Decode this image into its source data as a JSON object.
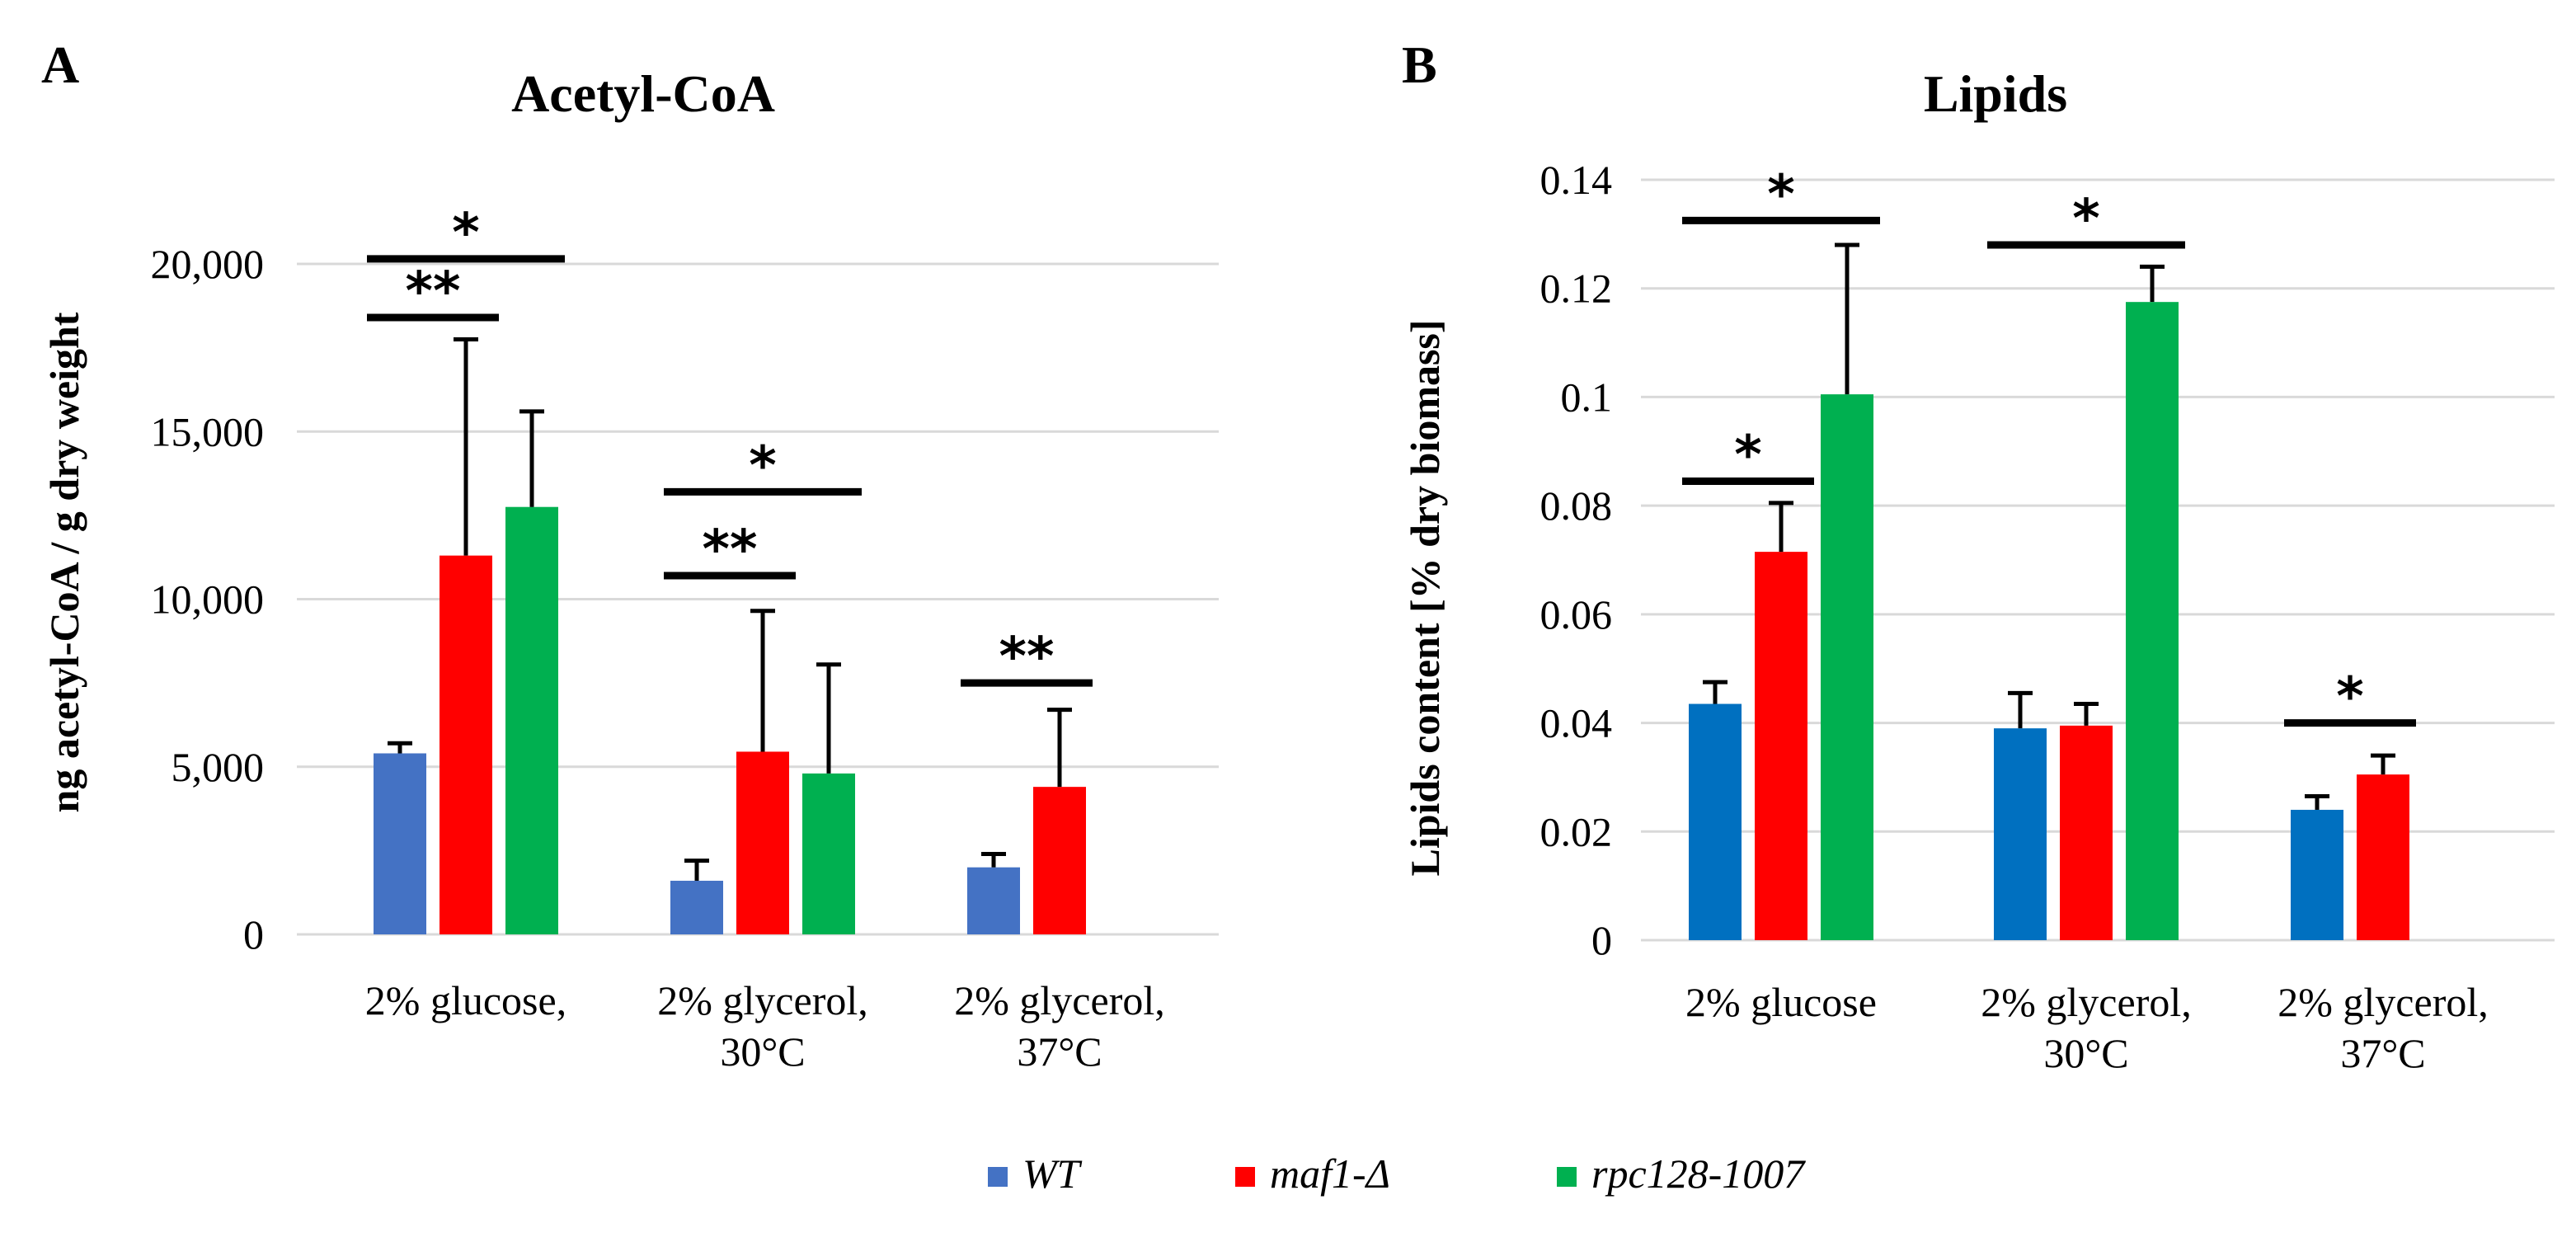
{
  "legend": [
    {
      "label": "WT",
      "color": "#4472C4"
    },
    {
      "label": "maf1-Δ",
      "color": "#FF0000"
    },
    {
      "label": "rpc128-1007",
      "color": "#00B050"
    }
  ],
  "chart_data": [
    {
      "type": "bar",
      "panel": "A",
      "title": "Acetyl-CoA",
      "ylabel": "ng acetyl-CoA / g dry weight",
      "ylim": [
        0,
        22500
      ],
      "yticks": [
        0,
        5000,
        10000,
        15000,
        20000
      ],
      "ytick_labels": [
        "0",
        "5,000",
        "10,000",
        "15,000",
        "20,000"
      ],
      "categories": [
        [
          "2% glucose,"
        ],
        [
          "2% glycerol,",
          "30°C"
        ],
        [
          "2% glycerol,",
          "37°C"
        ]
      ],
      "series": [
        {
          "name": "WT",
          "color": "#4472C4",
          "values": [
            5400,
            1600,
            2000
          ],
          "errors": [
            300,
            600,
            400
          ]
        },
        {
          "name": "maf1-Δ",
          "color": "#FF0000",
          "values": [
            11300,
            5450,
            4400
          ],
          "errors": [
            6450,
            4200,
            2300
          ]
        },
        {
          "name": "rpc128-1007",
          "color": "#00B050",
          "values": [
            12750,
            4800,
            null
          ],
          "errors": [
            2850,
            3250,
            null
          ]
        }
      ],
      "significance": [
        {
          "cat": 0,
          "from": 0,
          "to": 1,
          "y": 18400,
          "label": "**"
        },
        {
          "cat": 0,
          "from": 0,
          "to": 2,
          "y": 20150,
          "label": "*"
        },
        {
          "cat": 1,
          "from": 0,
          "to": 1,
          "y": 10700,
          "label": "**"
        },
        {
          "cat": 1,
          "from": 0,
          "to": 2,
          "y": 13200,
          "label": "*"
        },
        {
          "cat": 2,
          "from": 0,
          "to": 1,
          "y": 7500,
          "label": "**"
        }
      ]
    },
    {
      "type": "bar",
      "panel": "B",
      "title": "Lipids",
      "ylabel": "Lipids content  [% dry biomass]",
      "ylim": [
        0,
        0.14
      ],
      "yticks": [
        0,
        0.02,
        0.04,
        0.06,
        0.08,
        0.1,
        0.12,
        0.14
      ],
      "ytick_labels": [
        "0",
        "0.02",
        "0.04",
        "0.06",
        "0.08",
        "0.1",
        "0.12",
        "0.14"
      ],
      "categories": [
        [
          "2% glucose"
        ],
        [
          "2% glycerol,",
          "30°C"
        ],
        [
          "2% glycerol,",
          "37°C"
        ]
      ],
      "series": [
        {
          "name": "WT",
          "color": "#0070C0",
          "values": [
            0.0435,
            0.039,
            0.024
          ],
          "errors": [
            0.004,
            0.0065,
            0.0025
          ]
        },
        {
          "name": "maf1-Δ",
          "color": "#FF0000",
          "values": [
            0.0715,
            0.0395,
            0.0305
          ],
          "errors": [
            0.009,
            0.004,
            0.0035
          ]
        },
        {
          "name": "rpc128-1007",
          "color": "#00B050",
          "values": [
            0.1005,
            0.1175,
            null
          ],
          "errors": [
            0.0275,
            0.0065,
            null
          ]
        }
      ],
      "significance": [
        {
          "cat": 0,
          "from": 0,
          "to": 1,
          "y": 0.0845,
          "label": "*"
        },
        {
          "cat": 0,
          "from": 0,
          "to": 2,
          "y": 0.1325,
          "label": "*"
        },
        {
          "cat": 1,
          "from": 0,
          "to": 2,
          "y": 0.128,
          "label": "*"
        },
        {
          "cat": 2,
          "from": 0,
          "to": 1,
          "y": 0.04,
          "label": "*"
        }
      ]
    }
  ]
}
